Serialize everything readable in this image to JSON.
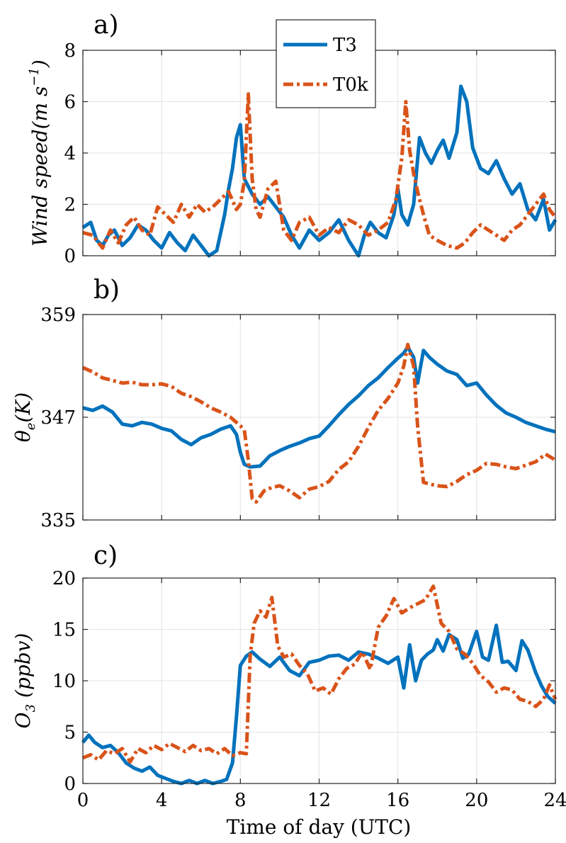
{
  "chart_data": [
    {
      "panel_label": "a)",
      "type": "line",
      "ylabel": "Wind speed(m s^-1)",
      "xlim": [
        0,
        24
      ],
      "ylim": [
        0,
        8
      ],
      "xticks": [
        "0",
        "4",
        "8",
        "12",
        "16",
        "20",
        "24"
      ],
      "yticks": [
        "0",
        "2",
        "4",
        "6",
        "8"
      ],
      "grid": true,
      "legend": {
        "position": "top-center",
        "entries": [
          "T3",
          "T0k"
        ]
      },
      "series": [
        {
          "name": "T3",
          "color": "#0072BD",
          "style": "solid",
          "x": [
            0,
            0.4,
            0.7,
            1,
            1.3,
            1.6,
            2,
            2.4,
            2.8,
            3.2,
            3.6,
            4,
            4.4,
            4.8,
            5.2,
            5.6,
            6,
            6.4,
            6.8,
            7.2,
            7.4,
            7.6,
            7.8,
            8,
            8.2,
            8.6,
            9,
            9.4,
            9.8,
            10.2,
            10.6,
            11,
            11.5,
            12,
            12.5,
            13,
            13.5,
            14,
            14.3,
            14.6,
            15,
            15.4,
            15.8,
            16,
            16.2,
            16.5,
            16.8,
            17.1,
            17.4,
            17.7,
            18,
            18.3,
            18.6,
            19,
            19.2,
            19.5,
            19.8,
            20.2,
            20.6,
            21,
            21.4,
            21.8,
            22.2,
            22.6,
            23,
            23.4,
            23.7,
            24
          ],
          "y": [
            1.1,
            1.3,
            0.6,
            0.4,
            0.8,
            1.0,
            0.4,
            0.7,
            1.2,
            1.0,
            0.6,
            0.3,
            0.9,
            0.5,
            0.2,
            0.8,
            0.4,
            0.0,
            0.2,
            1.6,
            2.6,
            3.4,
            4.6,
            5.1,
            3.0,
            2.4,
            2.0,
            2.3,
            1.9,
            1.5,
            0.8,
            0.3,
            1.0,
            0.6,
            0.9,
            1.4,
            0.6,
            0.0,
            0.8,
            1.3,
            0.9,
            0.7,
            1.6,
            2.6,
            1.6,
            1.2,
            2.0,
            4.6,
            4.0,
            3.6,
            4.1,
            4.5,
            3.8,
            4.8,
            6.6,
            6.0,
            4.2,
            3.4,
            3.2,
            3.7,
            3.0,
            2.4,
            2.8,
            1.8,
            1.4,
            2.2,
            1.0,
            1.4
          ]
        },
        {
          "name": "T0k",
          "color": "#D95319",
          "style": "dashdot",
          "x": [
            0,
            0.5,
            1,
            1.4,
            1.8,
            2.2,
            2.6,
            3,
            3.4,
            3.8,
            4.2,
            4.6,
            5,
            5.4,
            5.8,
            6.2,
            6.6,
            7,
            7.4,
            7.8,
            8,
            8.2,
            8.4,
            8.6,
            8.8,
            9,
            9.4,
            9.8,
            10.2,
            10.6,
            11,
            11.5,
            12,
            12.5,
            13,
            13.5,
            14,
            14.5,
            15,
            15.5,
            15.9,
            16.2,
            16.4,
            16.6,
            16.8,
            17,
            17.3,
            17.6,
            18,
            18.5,
            19,
            19.4,
            19.8,
            20.2,
            20.6,
            21,
            21.4,
            21.8,
            22.2,
            22.6,
            23,
            23.4,
            23.7,
            24
          ],
          "y": [
            0.9,
            0.8,
            0.3,
            1.0,
            0.5,
            1.2,
            1.5,
            1.0,
            0.8,
            1.9,
            1.6,
            1.3,
            2.0,
            1.5,
            2.0,
            1.7,
            1.9,
            2.2,
            2.5,
            1.8,
            2.0,
            2.9,
            6.3,
            3.0,
            1.8,
            1.5,
            2.6,
            2.9,
            1.0,
            0.6,
            1.3,
            1.5,
            0.8,
            1.1,
            0.9,
            1.4,
            1.2,
            0.8,
            1.0,
            1.3,
            2.2,
            3.8,
            6.0,
            4.1,
            3.2,
            2.5,
            1.6,
            0.8,
            0.6,
            0.4,
            0.3,
            0.5,
            0.9,
            1.2,
            1.0,
            0.8,
            0.6,
            1.0,
            1.2,
            1.6,
            2.0,
            2.4,
            1.8,
            1.5
          ]
        }
      ]
    },
    {
      "panel_label": "b)",
      "type": "line",
      "ylabel": "θe(K)",
      "xlim": [
        0,
        24
      ],
      "ylim": [
        335,
        359
      ],
      "xticks": [
        "0",
        "4",
        "8",
        "12",
        "16",
        "20",
        "24"
      ],
      "yticks": [
        "335",
        "347",
        "359"
      ],
      "grid": true,
      "series": [
        {
          "name": "T3",
          "color": "#0072BD",
          "style": "solid",
          "x": [
            0,
            0.5,
            1,
            1.5,
            2,
            2.5,
            3,
            3.5,
            4,
            4.5,
            5,
            5.5,
            6,
            6.5,
            7,
            7.5,
            7.8,
            8,
            8.2,
            8.5,
            9,
            9.5,
            10,
            10.5,
            11,
            11.5,
            12,
            12.5,
            13,
            13.5,
            14,
            14.5,
            15,
            15.5,
            16,
            16.3,
            16.5,
            16.8,
            17,
            17.3,
            17.6,
            18,
            18.5,
            19,
            19.5,
            20,
            20.5,
            21,
            21.5,
            22,
            22.5,
            23,
            23.5,
            24
          ],
          "y": [
            348.1,
            347.8,
            348.3,
            347.6,
            346.2,
            346.0,
            346.4,
            346.2,
            345.7,
            345.4,
            344.4,
            343.8,
            344.6,
            345.0,
            345.6,
            346.0,
            345.0,
            342.9,
            341.5,
            341.2,
            341.3,
            342.5,
            343.1,
            343.6,
            344.0,
            344.5,
            344.8,
            346.0,
            347.3,
            348.5,
            349.5,
            350.7,
            351.6,
            352.8,
            353.9,
            354.5,
            355.2,
            354.0,
            351.0,
            354.8,
            354.0,
            353.2,
            352.4,
            352.0,
            350.7,
            351.0,
            349.6,
            348.4,
            347.5,
            347.0,
            346.4,
            346.0,
            345.6,
            345.3
          ]
        },
        {
          "name": "T0k",
          "color": "#D95319",
          "style": "dashdot",
          "x": [
            0,
            0.5,
            1,
            1.5,
            2,
            2.5,
            3,
            3.5,
            4,
            4.5,
            5,
            5.5,
            6,
            6.5,
            7,
            7.5,
            8,
            8.2,
            8.4,
            8.6,
            8.8,
            9.2,
            9.6,
            10,
            10.5,
            11,
            11.5,
            12,
            12.5,
            13,
            13.5,
            14,
            14.5,
            15,
            15.5,
            16,
            16.3,
            16.5,
            16.8,
            17,
            17.3,
            17.6,
            18,
            18.5,
            19,
            19.5,
            20,
            20.5,
            21,
            21.5,
            22,
            22.5,
            23,
            23.5,
            24
          ],
          "y": [
            352.8,
            352.3,
            351.6,
            351.3,
            351.0,
            351.1,
            350.8,
            350.8,
            350.9,
            350.6,
            349.8,
            349.4,
            348.8,
            348.1,
            347.6,
            347.0,
            346.0,
            345.5,
            342.0,
            337.5,
            337.1,
            338.4,
            338.8,
            339.0,
            338.4,
            337.6,
            338.6,
            338.9,
            339.5,
            340.9,
            341.8,
            343.6,
            345.8,
            347.8,
            349.2,
            351.0,
            353.0,
            355.5,
            353.0,
            346.0,
            339.4,
            339.2,
            339.0,
            338.9,
            339.5,
            340.3,
            340.8,
            341.6,
            341.5,
            341.2,
            341.0,
            341.4,
            341.8,
            342.7,
            342.0
          ]
        }
      ]
    },
    {
      "panel_label": "c)",
      "type": "line",
      "ylabel": "O3 (ppbv)",
      "xlabel": "Time of day (UTC)",
      "xlim": [
        0,
        24
      ],
      "ylim": [
        0,
        20
      ],
      "xticks": [
        "0",
        "4",
        "8",
        "12",
        "16",
        "20",
        "24"
      ],
      "yticks": [
        "0",
        "5",
        "10",
        "15",
        "20"
      ],
      "grid": true,
      "series": [
        {
          "name": "T3",
          "color": "#0072BD",
          "style": "solid",
          "x": [
            0,
            0.3,
            0.6,
            1,
            1.4,
            1.8,
            2.2,
            2.6,
            3,
            3.4,
            3.8,
            4.2,
            4.6,
            5,
            5.4,
            5.8,
            6.2,
            6.6,
            7,
            7.3,
            7.6,
            7.8,
            8,
            8.3,
            8.6,
            9,
            9.5,
            10,
            10.5,
            11,
            11.5,
            12,
            12.5,
            13,
            13.5,
            14,
            14.5,
            15,
            15.5,
            16,
            16.3,
            16.6,
            16.9,
            17.2,
            17.5,
            17.8,
            18,
            18.3,
            18.6,
            19,
            19.3,
            19.6,
            20,
            20.3,
            20.6,
            21,
            21.3,
            21.6,
            22,
            22.3,
            22.6,
            23,
            23.3,
            23.6,
            24
          ],
          "y": [
            4.0,
            4.7,
            4.0,
            3.5,
            3.7,
            3.0,
            2.0,
            1.5,
            1.2,
            1.6,
            0.8,
            0.5,
            0.2,
            0.0,
            0.3,
            0.0,
            0.3,
            0.0,
            0.2,
            0.4,
            2.0,
            6.5,
            11.5,
            12.4,
            12.8,
            12.1,
            11.4,
            12.3,
            11.0,
            10.5,
            11.8,
            12.0,
            12.4,
            12.5,
            12.0,
            12.8,
            12.6,
            12.2,
            11.7,
            12.3,
            9.3,
            13.5,
            10.0,
            12.0,
            12.6,
            13.0,
            14.0,
            12.9,
            14.5,
            14.0,
            12.2,
            12.6,
            14.8,
            12.3,
            12.0,
            15.4,
            11.8,
            11.9,
            11.0,
            13.9,
            13.0,
            10.8,
            9.5,
            8.5,
            7.8
          ]
        },
        {
          "name": "T0k",
          "color": "#D95319",
          "style": "dashdot",
          "x": [
            0,
            0.4,
            0.8,
            1.2,
            1.6,
            2,
            2.4,
            2.8,
            3.2,
            3.6,
            4,
            4.4,
            4.8,
            5.2,
            5.6,
            6,
            6.4,
            6.8,
            7.2,
            7.6,
            8,
            8.3,
            8.5,
            8.7,
            9,
            9.3,
            9.6,
            9.9,
            10.2,
            10.6,
            11,
            11.4,
            11.8,
            12.2,
            12.6,
            13,
            13.4,
            13.8,
            14.2,
            14.6,
            15,
            15.4,
            15.8,
            16.2,
            16.6,
            17,
            17.4,
            17.8,
            18.2,
            18.6,
            19,
            19.4,
            19.8,
            20.2,
            20.6,
            21,
            21.4,
            21.8,
            22.2,
            22.6,
            23,
            23.4,
            23.7,
            24
          ],
          "y": [
            2.5,
            2.8,
            2.3,
            3.2,
            2.9,
            3.4,
            2.1,
            3.4,
            3.0,
            3.7,
            3.3,
            3.9,
            3.5,
            3.1,
            3.7,
            3.2,
            3.4,
            2.9,
            3.4,
            2.7,
            3.0,
            2.9,
            12.5,
            15.6,
            16.8,
            16.2,
            18.1,
            13.4,
            12.3,
            12.6,
            11.5,
            10.7,
            9.0,
            9.3,
            8.7,
            10.2,
            11.2,
            11.6,
            12.8,
            11.1,
            15.2,
            16.3,
            18.0,
            16.6,
            17.1,
            17.5,
            17.9,
            19.2,
            15.6,
            14.8,
            13.1,
            12.6,
            11.7,
            10.5,
            9.9,
            8.9,
            9.3,
            9.1,
            8.2,
            8.0,
            7.5,
            8.2,
            9.6,
            8.2
          ]
        }
      ]
    }
  ]
}
